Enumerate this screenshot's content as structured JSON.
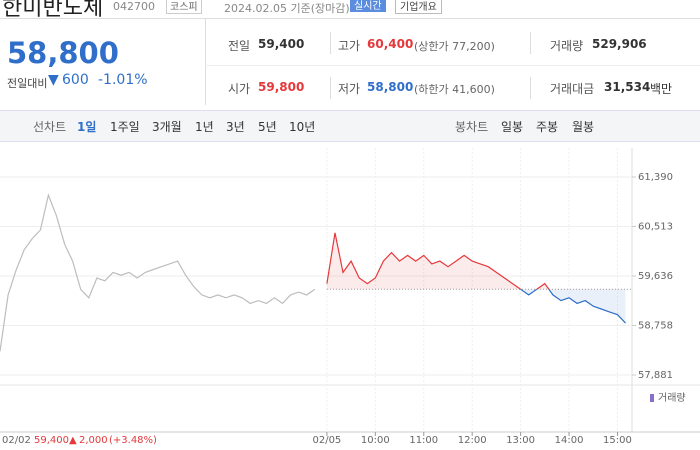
{
  "header": {
    "name": "한미반도체",
    "code": "042700",
    "market": "코스피",
    "date": "2024.02.05 기준(장마감)",
    "realtime": "실시간",
    "company_info": "기업개요"
  },
  "quote": {
    "price": "58,800",
    "change_label": "전일대비",
    "change": "600",
    "change_pct": "-1.01%"
  },
  "summary": [
    {
      "label": "전일",
      "value": "59,400"
    },
    {
      "label": "고가",
      "value": "60,400",
      "note": "(상한가 77,200)"
    },
    {
      "label": "거래량",
      "value": "529,906"
    },
    {
      "label": "시가",
      "value": "59,800"
    },
    {
      "label": "저가",
      "value": "58,800",
      "note": "(하한가 41,600)"
    },
    {
      "label": "거래대금",
      "value": "31,534",
      "unit": "백만"
    }
  ],
  "tabs": {
    "line_chart": "선차트",
    "periods": [
      "1일",
      "1주일",
      "3개월",
      "1년",
      "3년",
      "5년",
      "10년"
    ],
    "candle_chart": "봉차트",
    "candles": [
      "일봉",
      "주봉",
      "월봉"
    ]
  },
  "chart_data": {
    "type": "line",
    "xlim": [
      0,
      783
    ],
    "xticks": [
      {
        "value": 405,
        "label": "02/05"
      },
      {
        "value": 465,
        "label": "10:00"
      },
      {
        "value": 525,
        "label": "11:00"
      },
      {
        "value": 585,
        "label": "12:00"
      },
      {
        "value": 645,
        "label": "13:00"
      },
      {
        "value": 705,
        "label": "14:00"
      },
      {
        "value": 765,
        "label": "15:00"
      }
    ],
    "ylim": [
      57881,
      61390
    ],
    "yticks": [
      {
        "value": 61390,
        "label": "61,390"
      },
      {
        "value": 60513,
        "label": "60,513"
      },
      {
        "value": 59636,
        "label": "59,636"
      },
      {
        "value": 58758,
        "label": "58,758"
      },
      {
        "value": 57881,
        "label": "57,881"
      }
    ],
    "grid": true,
    "reference_line": 59400,
    "series": [
      {
        "color": "#bdbdbd",
        "x": [
          0,
          10,
          20,
          30,
          40,
          50,
          60,
          70,
          80,
          90,
          100,
          110,
          120,
          130,
          140,
          150,
          160,
          170,
          180,
          190,
          200,
          210,
          220,
          230,
          240,
          250,
          260,
          270,
          280,
          290,
          300,
          310,
          320,
          330,
          340,
          350,
          360,
          370,
          380,
          390
        ],
        "values": [
          58300,
          59300,
          59740,
          60100,
          60300,
          60450,
          61070,
          60700,
          60200,
          59900,
          59400,
          59250,
          59600,
          59550,
          59700,
          59650,
          59700,
          59600,
          59700,
          59750,
          59800,
          59850,
          59900,
          59650,
          59450,
          59300,
          59250,
          59300,
          59250,
          59300,
          59250,
          59150,
          59200,
          59150,
          59250,
          59150,
          59300,
          59350,
          59300,
          59400
        ]
      },
      {
        "color_up": "#e5383b",
        "color_down": "#2f6fc9",
        "x": [
          405,
          415,
          425,
          435,
          445,
          455,
          465,
          475,
          485,
          495,
          505,
          515,
          525,
          535,
          545,
          555,
          565,
          575,
          585,
          595,
          605,
          615,
          625,
          635,
          645,
          655,
          665,
          675,
          685,
          695,
          705,
          715,
          725,
          735,
          745,
          755,
          765,
          775
        ],
        "values": [
          59500,
          60400,
          59700,
          59900,
          59600,
          59500,
          59600,
          59900,
          60050,
          59900,
          60000,
          59900,
          60000,
          59850,
          59900,
          59800,
          59900,
          60000,
          59900,
          59850,
          59800,
          59700,
          59600,
          59500,
          59400,
          59300,
          59400,
          59500,
          59300,
          59200,
          59250,
          59150,
          59200,
          59100,
          59050,
          59000,
          58950,
          58800
        ]
      }
    ],
    "volume_label": "거래량",
    "info": {
      "date": "02/02",
      "close": "59,400",
      "change": "2,000",
      "change_pct": "(+3.48%)"
    }
  }
}
